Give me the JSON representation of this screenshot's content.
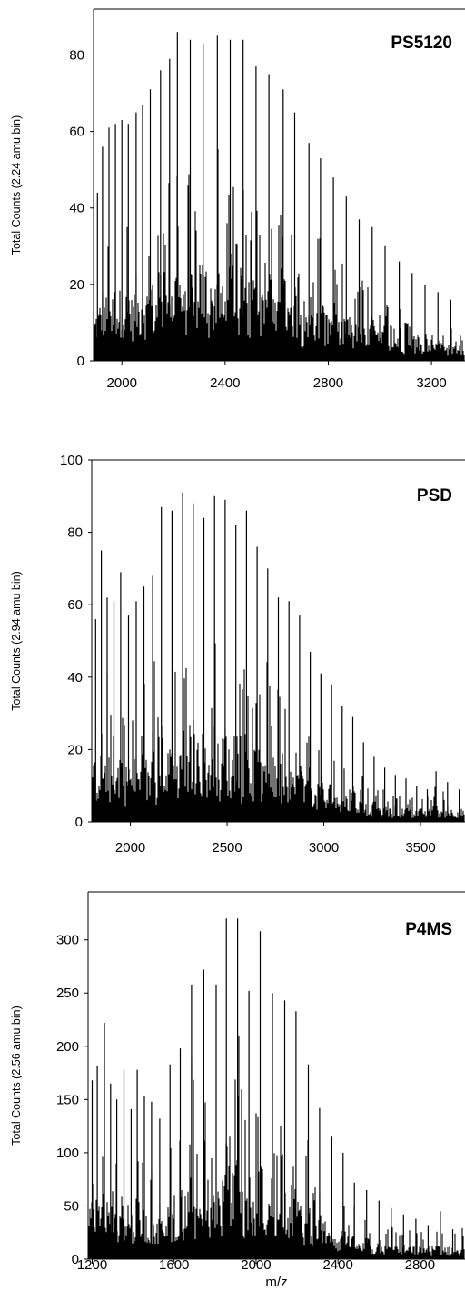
{
  "chart_data": [
    {
      "type": "bar",
      "title": "PS5120",
      "ylabel": "Total Counts (2.24 amu bin)",
      "xlabel": "",
      "xlim": [
        1890,
        3330
      ],
      "ylim": [
        0,
        92
      ],
      "xticks": [
        2000,
        2400,
        2800,
        3200
      ],
      "yticks": [
        0,
        20,
        40,
        60,
        80
      ],
      "peaks": [
        {
          "x": 1905,
          "y": 44
        },
        {
          "x": 1925,
          "y": 56
        },
        {
          "x": 1950,
          "y": 61
        },
        {
          "x": 1975,
          "y": 62
        },
        {
          "x": 2000,
          "y": 63
        },
        {
          "x": 2025,
          "y": 62
        },
        {
          "x": 2055,
          "y": 65
        },
        {
          "x": 2080,
          "y": 67
        },
        {
          "x": 2110,
          "y": 71
        },
        {
          "x": 2150,
          "y": 76
        },
        {
          "x": 2185,
          "y": 79
        },
        {
          "x": 2215,
          "y": 86
        },
        {
          "x": 2265,
          "y": 84
        },
        {
          "x": 2315,
          "y": 83
        },
        {
          "x": 2370,
          "y": 85
        },
        {
          "x": 2420,
          "y": 84
        },
        {
          "x": 2470,
          "y": 84
        },
        {
          "x": 2520,
          "y": 77
        },
        {
          "x": 2570,
          "y": 75
        },
        {
          "x": 2625,
          "y": 71
        },
        {
          "x": 2670,
          "y": 65
        },
        {
          "x": 2725,
          "y": 57
        },
        {
          "x": 2770,
          "y": 53
        },
        {
          "x": 2820,
          "y": 48
        },
        {
          "x": 2870,
          "y": 43
        },
        {
          "x": 2920,
          "y": 37
        },
        {
          "x": 2970,
          "y": 35
        },
        {
          "x": 3020,
          "y": 30
        },
        {
          "x": 3075,
          "y": 26
        },
        {
          "x": 3125,
          "y": 23
        },
        {
          "x": 3175,
          "y": 20
        },
        {
          "x": 3225,
          "y": 18
        },
        {
          "x": 3275,
          "y": 16
        }
      ]
    },
    {
      "type": "bar",
      "title": "PSD",
      "ylabel": "Total Counts (2.94 amu bin)",
      "xlabel": "",
      "xlim": [
        1800,
        3730
      ],
      "ylim": [
        0,
        100
      ],
      "xticks": [
        2000,
        2500,
        3000,
        3500
      ],
      "yticks": [
        0,
        20,
        40,
        60,
        80,
        100
      ],
      "peaks": [
        {
          "x": 1820,
          "y": 56
        },
        {
          "x": 1850,
          "y": 75
        },
        {
          "x": 1880,
          "y": 62
        },
        {
          "x": 1915,
          "y": 61
        },
        {
          "x": 1950,
          "y": 69
        },
        {
          "x": 1990,
          "y": 57
        },
        {
          "x": 2030,
          "y": 61
        },
        {
          "x": 2070,
          "y": 65
        },
        {
          "x": 2115,
          "y": 68
        },
        {
          "x": 2160,
          "y": 87
        },
        {
          "x": 2215,
          "y": 86
        },
        {
          "x": 2270,
          "y": 91
        },
        {
          "x": 2325,
          "y": 88
        },
        {
          "x": 2380,
          "y": 84
        },
        {
          "x": 2435,
          "y": 90
        },
        {
          "x": 2490,
          "y": 89
        },
        {
          "x": 2545,
          "y": 82
        },
        {
          "x": 2600,
          "y": 86
        },
        {
          "x": 2655,
          "y": 76
        },
        {
          "x": 2710,
          "y": 70
        },
        {
          "x": 2765,
          "y": 62
        },
        {
          "x": 2820,
          "y": 61
        },
        {
          "x": 2875,
          "y": 57
        },
        {
          "x": 2930,
          "y": 47
        },
        {
          "x": 2985,
          "y": 41
        },
        {
          "x": 3040,
          "y": 38
        },
        {
          "x": 3095,
          "y": 32
        },
        {
          "x": 3150,
          "y": 29
        },
        {
          "x": 3205,
          "y": 22
        },
        {
          "x": 3260,
          "y": 18
        },
        {
          "x": 3315,
          "y": 15
        },
        {
          "x": 3370,
          "y": 13
        },
        {
          "x": 3425,
          "y": 12
        },
        {
          "x": 3480,
          "y": 10
        },
        {
          "x": 3535,
          "y": 9
        },
        {
          "x": 3580,
          "y": 14
        },
        {
          "x": 3640,
          "y": 11
        },
        {
          "x": 3700,
          "y": 9
        }
      ]
    },
    {
      "type": "bar",
      "title": "P4MS",
      "ylabel": "Total Counts (2.56 amu bin)",
      "xlabel": "m/z",
      "xlim": [
        1180,
        3020
      ],
      "ylim": [
        0,
        345
      ],
      "xticks": [
        1200,
        1600,
        2000,
        2400,
        2800
      ],
      "yticks": [
        0,
        50,
        100,
        150,
        200,
        250,
        300
      ],
      "peaks": [
        {
          "x": 1200,
          "y": 168
        },
        {
          "x": 1225,
          "y": 182
        },
        {
          "x": 1260,
          "y": 222
        },
        {
          "x": 1290,
          "y": 165
        },
        {
          "x": 1320,
          "y": 150
        },
        {
          "x": 1355,
          "y": 178
        },
        {
          "x": 1390,
          "y": 141
        },
        {
          "x": 1420,
          "y": 178
        },
        {
          "x": 1455,
          "y": 153
        },
        {
          "x": 1490,
          "y": 148
        },
        {
          "x": 1530,
          "y": 132
        },
        {
          "x": 1580,
          "y": 183
        },
        {
          "x": 1630,
          "y": 198
        },
        {
          "x": 1685,
          "y": 258
        },
        {
          "x": 1745,
          "y": 272
        },
        {
          "x": 1805,
          "y": 258
        },
        {
          "x": 1855,
          "y": 320
        },
        {
          "x": 1910,
          "y": 320
        },
        {
          "x": 1965,
          "y": 252
        },
        {
          "x": 2020,
          "y": 308
        },
        {
          "x": 2080,
          "y": 250
        },
        {
          "x": 2140,
          "y": 243
        },
        {
          "x": 2195,
          "y": 233
        },
        {
          "x": 2255,
          "y": 183
        },
        {
          "x": 2310,
          "y": 142
        },
        {
          "x": 2370,
          "y": 115
        },
        {
          "x": 2425,
          "y": 100
        },
        {
          "x": 2480,
          "y": 72
        },
        {
          "x": 2540,
          "y": 65
        },
        {
          "x": 2600,
          "y": 55
        },
        {
          "x": 2660,
          "y": 48
        },
        {
          "x": 2720,
          "y": 42
        },
        {
          "x": 2780,
          "y": 38
        },
        {
          "x": 2840,
          "y": 32
        },
        {
          "x": 2900,
          "y": 45
        },
        {
          "x": 2960,
          "y": 28
        }
      ]
    }
  ]
}
